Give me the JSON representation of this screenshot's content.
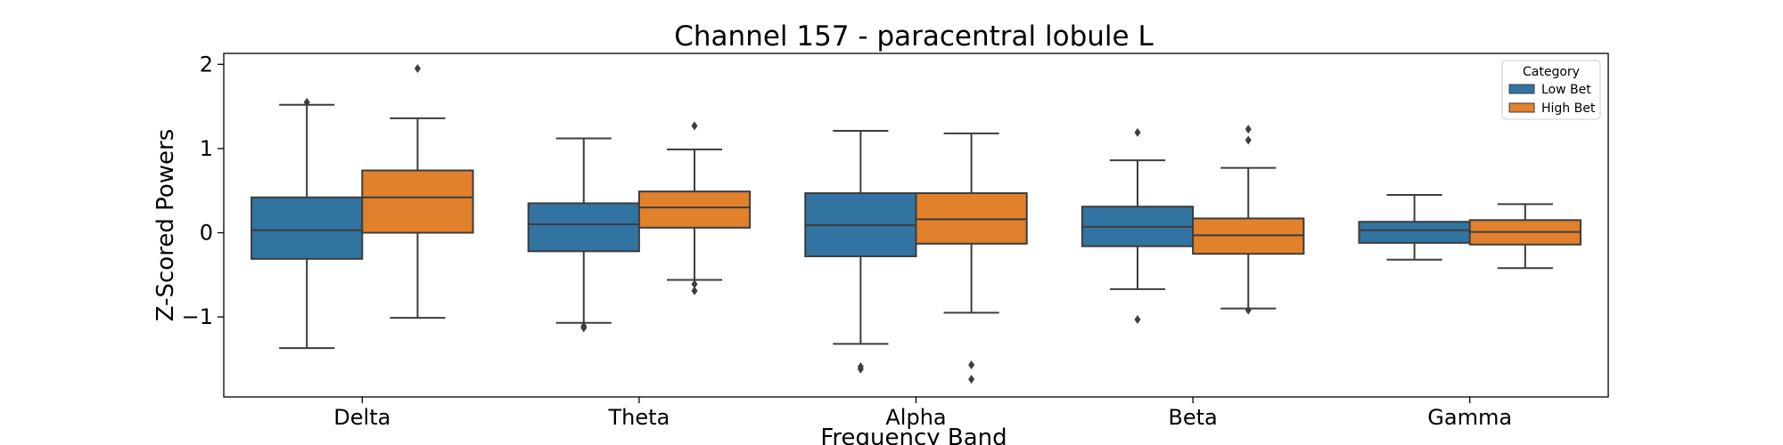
{
  "chart_data": {
    "type": "box",
    "title": "Channel 157 - paracentral lobule L",
    "xlabel": "Frequency Band",
    "ylabel": "Z-Scored Powers",
    "categories": [
      "Delta",
      "Theta",
      "Alpha",
      "Beta",
      "Gamma"
    ],
    "ylim": [
      -1.95,
      2.13
    ],
    "yticks": [
      -1,
      0,
      1,
      2
    ],
    "ytick_labels": [
      "−1",
      "0",
      "1",
      "2"
    ],
    "legend": {
      "title": "Category",
      "placement": "top-right"
    },
    "series": [
      {
        "name": "Low Bet",
        "color": "#3274a1",
        "boxes": [
          {
            "whisker_low": -1.37,
            "q1": -0.31,
            "median": 0.03,
            "q3": 0.42,
            "whisker_high": 1.52,
            "outliers": [
              1.55
            ]
          },
          {
            "whisker_low": -1.07,
            "q1": -0.22,
            "median": 0.1,
            "q3": 0.35,
            "whisker_high": 1.12,
            "outliers": [
              -1.11,
              -1.13
            ]
          },
          {
            "whisker_low": -1.32,
            "q1": -0.28,
            "median": 0.09,
            "q3": 0.47,
            "whisker_high": 1.21,
            "outliers": [
              -1.59,
              -1.62
            ]
          },
          {
            "whisker_low": -0.67,
            "q1": -0.16,
            "median": 0.07,
            "q3": 0.31,
            "whisker_high": 0.86,
            "outliers": [
              1.19,
              -1.03
            ]
          },
          {
            "whisker_low": -0.32,
            "q1": -0.12,
            "median": 0.03,
            "q3": 0.13,
            "whisker_high": 0.45,
            "outliers": []
          }
        ]
      },
      {
        "name": "High Bet",
        "color": "#e1812c",
        "boxes": [
          {
            "whisker_low": -1.01,
            "q1": 0.0,
            "median": 0.42,
            "q3": 0.74,
            "whisker_high": 1.36,
            "outliers": [
              1.95
            ]
          },
          {
            "whisker_low": -0.56,
            "q1": 0.06,
            "median": 0.3,
            "q3": 0.49,
            "whisker_high": 0.99,
            "outliers": [
              1.27,
              -0.61,
              -0.69
            ]
          },
          {
            "whisker_low": -0.95,
            "q1": -0.13,
            "median": 0.16,
            "q3": 0.47,
            "whisker_high": 1.18,
            "outliers": [
              -1.57,
              -1.74
            ]
          },
          {
            "whisker_low": -0.9,
            "q1": -0.25,
            "median": -0.03,
            "q3": 0.17,
            "whisker_high": 0.77,
            "outliers": [
              1.23,
              1.1,
              -0.92
            ]
          },
          {
            "whisker_low": -0.42,
            "q1": -0.14,
            "median": 0.01,
            "q3": 0.15,
            "whisker_high": 0.34,
            "outliers": []
          }
        ]
      }
    ]
  }
}
